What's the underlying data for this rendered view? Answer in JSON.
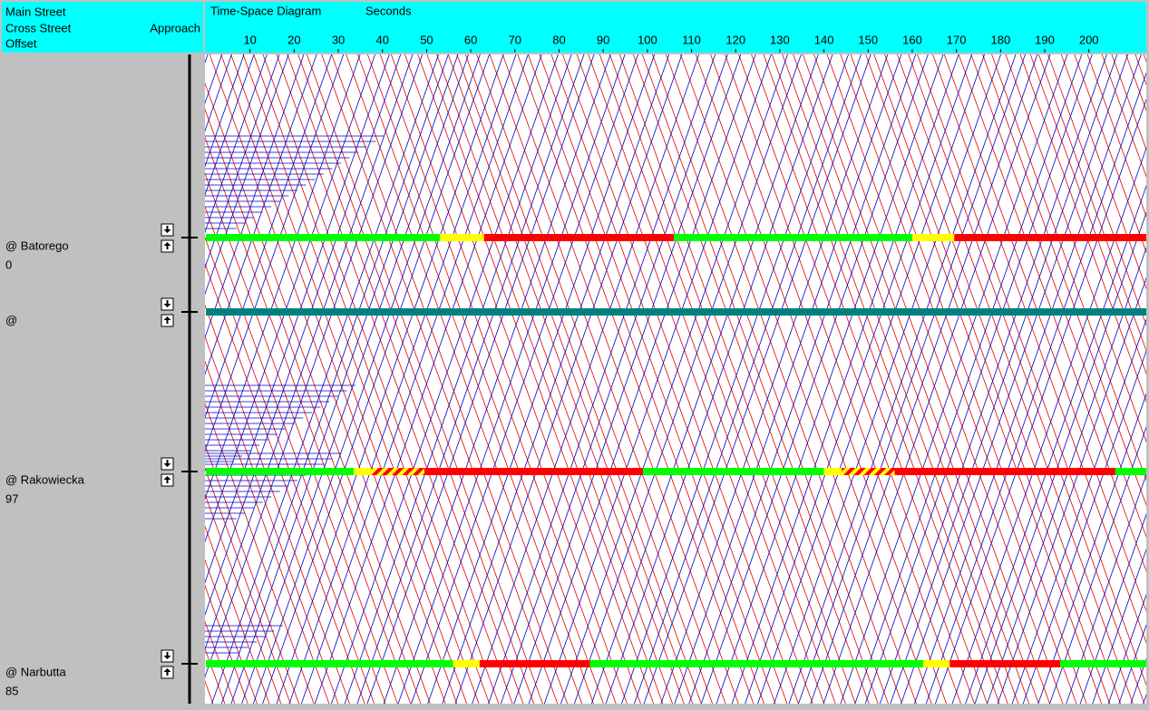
{
  "header": {
    "main_street": "Main Street",
    "cross_street": "Cross Street",
    "offset": "Offset",
    "approach": "Approach"
  },
  "diagram": {
    "title": "Time-Space Diagram",
    "unit": "Seconds",
    "xlim": [
      0,
      213
    ],
    "xticks": [
      10,
      20,
      30,
      40,
      50,
      60,
      70,
      80,
      90,
      100,
      110,
      120,
      130,
      140,
      150,
      160,
      170,
      180,
      190,
      200
    ]
  },
  "intersections": [
    {
      "name": "@ Batorego",
      "offset": "0",
      "phases": [
        {
          "color": "green",
          "start": 0,
          "end": 53
        },
        {
          "color": "yellow",
          "start": 53,
          "end": 63
        },
        {
          "color": "red",
          "start": 63,
          "end": 106
        },
        {
          "color": "green",
          "start": 106,
          "end": 160
        },
        {
          "color": "yellow",
          "start": 160,
          "end": 169.5
        },
        {
          "color": "red",
          "start": 169.5,
          "end": 213
        }
      ]
    },
    {
      "name": "@",
      "phases": [
        {
          "color": "teal",
          "start": 0,
          "end": 213
        }
      ]
    },
    {
      "name": "@ Rakowiecka",
      "offset": "97",
      "phases": [
        {
          "color": "green",
          "start": 0,
          "end": 33.5
        },
        {
          "color": "yellow",
          "start": 33.5,
          "end": 37.5
        },
        {
          "color": "hatched",
          "start": 37.5,
          "end": 49.5
        },
        {
          "color": "red",
          "start": 49.5,
          "end": 99
        },
        {
          "color": "green",
          "start": 99,
          "end": 140
        },
        {
          "color": "yellow",
          "start": 140,
          "end": 144
        },
        {
          "color": "hatched",
          "start": 144,
          "end": 156
        },
        {
          "color": "red",
          "start": 156,
          "end": 206
        },
        {
          "color": "green",
          "start": 206,
          "end": 213
        }
      ]
    },
    {
      "name": "@ Narbutta",
      "offset": "85",
      "phases": [
        {
          "color": "green",
          "start": 0,
          "end": 56
        },
        {
          "color": "yellow",
          "start": 56,
          "end": 62
        },
        {
          "color": "red",
          "start": 62,
          "end": 87
        },
        {
          "color": "green",
          "start": 87,
          "end": 162.5
        },
        {
          "color": "yellow",
          "start": 162.5,
          "end": 168.5
        },
        {
          "color": "red",
          "start": 168.5,
          "end": 193.5
        },
        {
          "color": "green",
          "start": 193.5,
          "end": 213
        }
      ]
    }
  ]
}
